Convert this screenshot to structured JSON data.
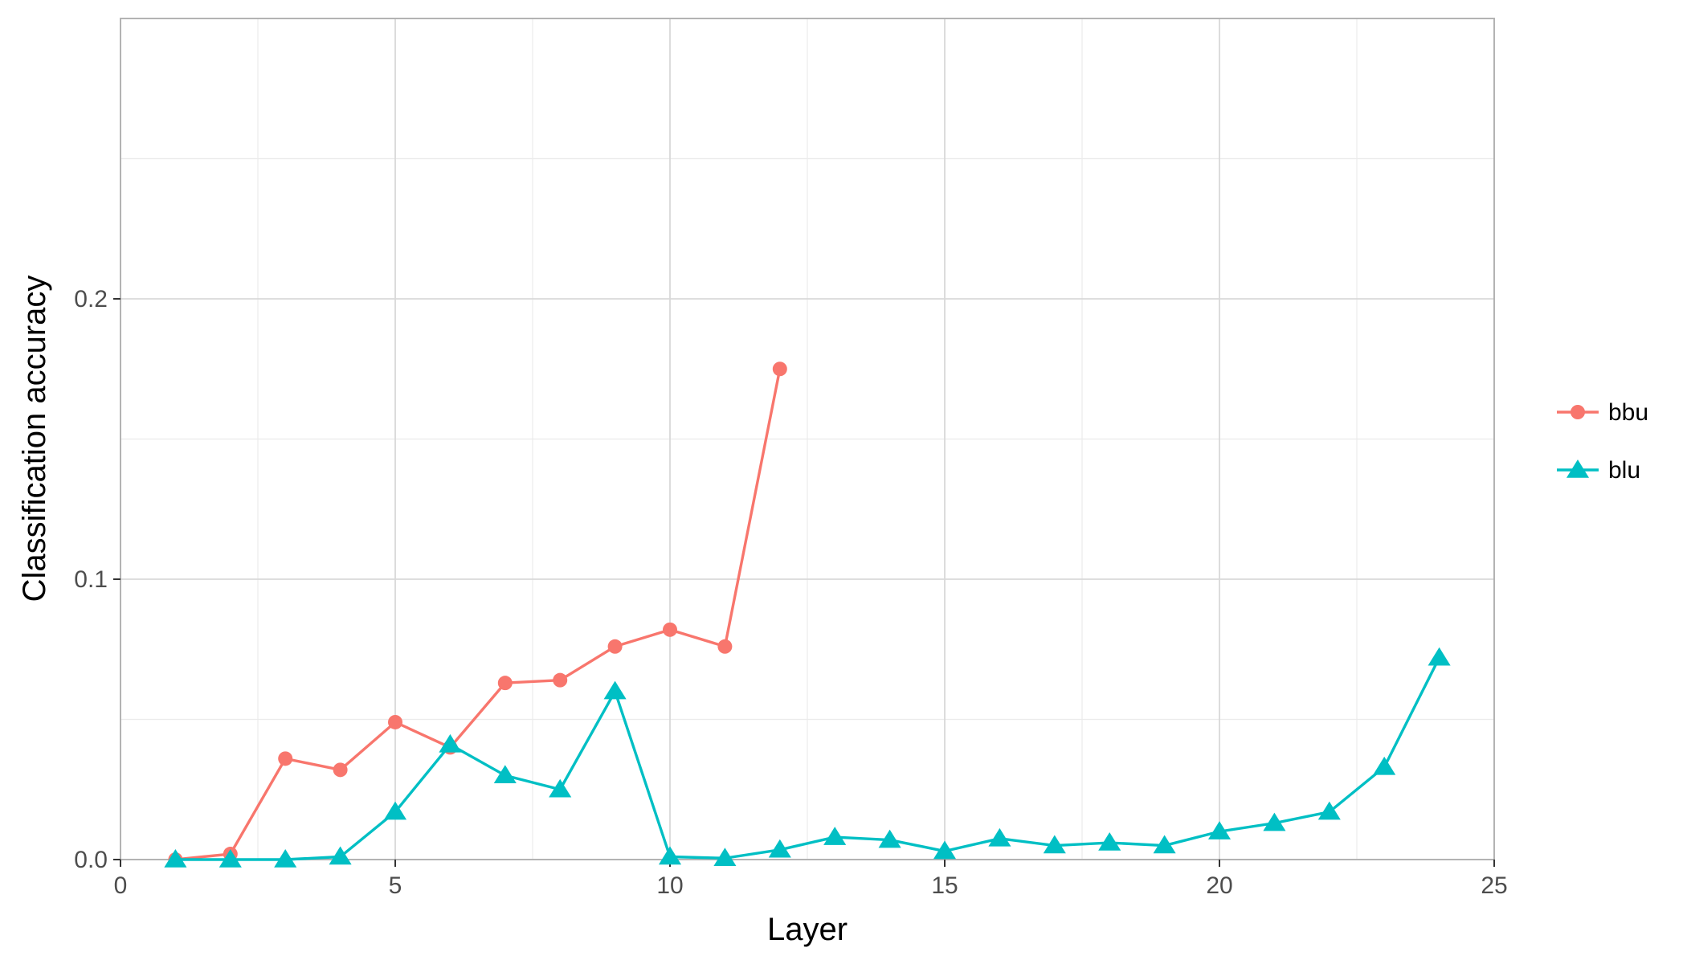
{
  "chart_data": {
    "type": "line",
    "title": "",
    "xlabel": "Layer",
    "ylabel": "Classification accuracy",
    "xlim": [
      0,
      25
    ],
    "ylim": [
      0,
      0.3
    ],
    "x_ticks": [
      0,
      5,
      10,
      15,
      20,
      25
    ],
    "x_tick_labels": [
      "0",
      "5",
      "10",
      "15",
      "20",
      "25"
    ],
    "y_ticks": [
      0.0,
      0.1,
      0.2
    ],
    "y_tick_labels": [
      "0.0",
      "0.1",
      "0.2"
    ],
    "grid": true,
    "legend_position": "right",
    "series": [
      {
        "name": "bbu",
        "color": "#F8766D",
        "marker": "circle",
        "x": [
          1,
          2,
          3,
          4,
          5,
          6,
          7,
          8,
          9,
          10,
          11,
          12
        ],
        "y": [
          0.0,
          0.002,
          0.036,
          0.032,
          0.049,
          0.04,
          0.063,
          0.064,
          0.076,
          0.082,
          0.076,
          0.175
        ]
      },
      {
        "name": "blu",
        "color": "#00BFC4",
        "marker": "triangle",
        "x": [
          1,
          2,
          3,
          4,
          5,
          6,
          7,
          8,
          9,
          10,
          11,
          12,
          13,
          14,
          15,
          16,
          17,
          18,
          19,
          20,
          21,
          22,
          23,
          24
        ],
        "y": [
          0.0,
          0.0,
          0.0,
          0.001,
          0.017,
          0.041,
          0.03,
          0.025,
          0.06,
          0.001,
          0.0005,
          0.0035,
          0.008,
          0.007,
          0.003,
          0.0075,
          0.005,
          0.006,
          0.005,
          0.01,
          0.013,
          0.017,
          0.033,
          0.072
        ]
      }
    ]
  }
}
